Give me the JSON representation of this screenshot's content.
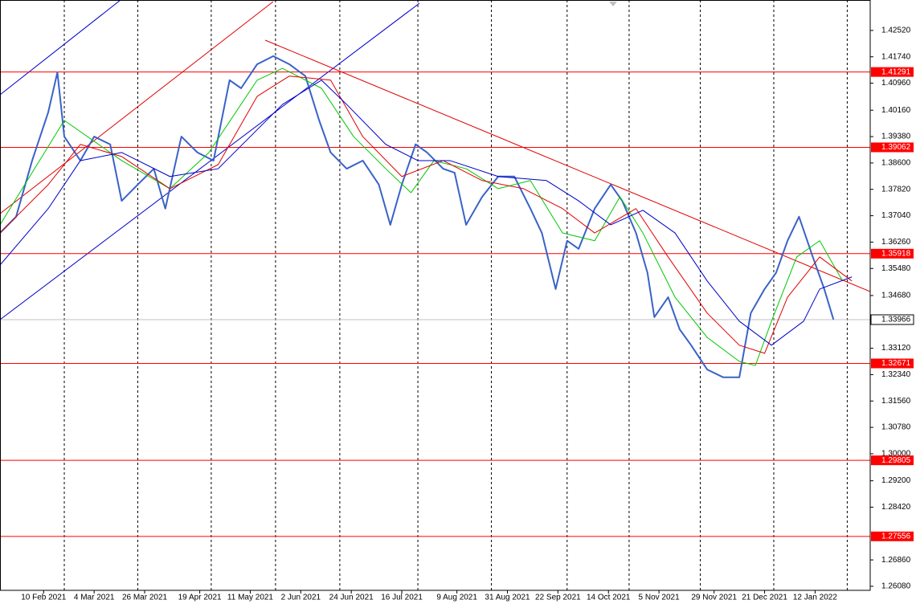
{
  "chart_data": {
    "type": "line",
    "xlim": [
      "2021-01-22",
      "2022-02-05"
    ],
    "ylim": [
      1.2596,
      1.4342
    ],
    "grid": true,
    "xgrid": [
      "2021-02-19",
      "2021-03-23",
      "2021-04-24",
      "2021-05-22",
      "2021-06-19",
      "2021-07-23",
      "2021-08-24",
      "2021-09-26",
      "2021-10-23",
      "2021-11-23",
      "2021-12-25",
      "2022-01-26"
    ],
    "xticks": [
      {
        "value": "2021-02-10",
        "label": "10 Feb 2021"
      },
      {
        "value": "2021-03-04",
        "label": "4 Mar 2021"
      },
      {
        "value": "2021-03-26",
        "label": "26 Mar 2021"
      },
      {
        "value": "2021-04-19",
        "label": "19 Apr 2021"
      },
      {
        "value": "2021-05-11",
        "label": "11 May 2021"
      },
      {
        "value": "2021-06-02",
        "label": "2 Jun 2021"
      },
      {
        "value": "2021-06-24",
        "label": "24 Jun 2021"
      },
      {
        "value": "2021-07-16",
        "label": "16 Jul 2021"
      },
      {
        "value": "2021-08-09",
        "label": "9 Aug 2021"
      },
      {
        "value": "2021-08-31",
        "label": "31 Aug 2021"
      },
      {
        "value": "2021-09-22",
        "label": "22 Sep 2021"
      },
      {
        "value": "2021-10-14",
        "label": "14 Oct 2021"
      },
      {
        "value": "2021-11-05",
        "label": "5 Nov 2021"
      },
      {
        "value": "2021-11-29",
        "label": "29 Nov 2021"
      },
      {
        "value": "2021-12-21",
        "label": "21 Dec 2021"
      },
      {
        "value": "2022-01-12",
        "label": "12 Jan 2022"
      }
    ],
    "yticks": [
      {
        "value": 1.4252,
        "label": "1.42520"
      },
      {
        "value": 1.4174,
        "label": "1.41740"
      },
      {
        "value": 1.4096,
        "label": "1.40960"
      },
      {
        "value": 1.4016,
        "label": "1.40160"
      },
      {
        "value": 1.3938,
        "label": "1.39380"
      },
      {
        "value": 1.386,
        "label": "1.38600"
      },
      {
        "value": 1.3782,
        "label": "1.37820"
      },
      {
        "value": 1.3704,
        "label": "1.37040"
      },
      {
        "value": 1.3626,
        "label": "1.36260"
      },
      {
        "value": 1.3548,
        "label": "1.35480"
      },
      {
        "value": 1.3468,
        "label": "1.34680"
      },
      {
        "value": 1.3312,
        "label": "1.33120"
      },
      {
        "value": 1.3234,
        "label": "1.32340"
      },
      {
        "value": 1.3156,
        "label": "1.31560"
      },
      {
        "value": 1.3078,
        "label": "1.30780"
      },
      {
        "value": 1.3,
        "label": "1.30000"
      },
      {
        "value": 1.292,
        "label": "1.29200"
      },
      {
        "value": 1.2842,
        "label": "1.28420"
      },
      {
        "value": 1.2686,
        "label": "1.26860"
      },
      {
        "value": 1.2608,
        "label": "1.26080"
      }
    ],
    "levels": [
      1.41291,
      1.39062,
      1.35918,
      1.32671,
      1.29805,
      1.27556
    ],
    "level_color": "#ff0000",
    "last_price": 1.33966,
    "series": [
      {
        "color": "#3a62c8",
        "width": 2,
        "x": [
          "2021-01-22",
          "2021-01-29",
          "2021-02-05",
          "2021-02-12",
          "2021-02-16",
          "2021-02-19",
          "2021-02-26",
          "2021-03-04",
          "2021-03-11",
          "2021-03-16",
          "2021-03-23",
          "2021-03-30",
          "2021-04-04",
          "2021-04-11",
          "2021-04-18",
          "2021-04-25",
          "2021-05-02",
          "2021-05-07",
          "2021-05-14",
          "2021-05-21",
          "2021-05-28",
          "2021-06-04",
          "2021-06-10",
          "2021-06-15",
          "2021-06-22",
          "2021-06-29",
          "2021-07-06",
          "2021-07-11",
          "2021-07-16",
          "2021-07-22",
          "2021-07-27",
          "2021-08-03",
          "2021-08-08",
          "2021-08-13",
          "2021-08-20",
          "2021-08-27",
          "2021-09-03",
          "2021-09-10",
          "2021-09-15",
          "2021-09-21",
          "2021-09-26",
          "2021-10-01",
          "2021-10-08",
          "2021-10-15",
          "2021-10-20",
          "2021-10-26",
          "2021-10-31",
          "2021-11-03",
          "2021-11-09",
          "2021-11-14",
          "2021-11-19",
          "2021-11-26",
          "2021-12-03",
          "2021-12-10",
          "2021-12-15",
          "2021-12-21",
          "2021-12-26",
          "2021-12-31",
          "2022-01-05",
          "2022-01-11",
          "2022-01-16",
          "2022-01-20"
        ],
        "values": [
          1.3653,
          1.3701,
          1.3867,
          1.401,
          1.4128,
          1.3938,
          1.3867,
          1.3938,
          1.3915,
          1.3748,
          1.3796,
          1.3843,
          1.3725,
          1.3938,
          1.3891,
          1.3867,
          1.4105,
          1.4081,
          1.4152,
          1.4176,
          1.4152,
          1.4117,
          1.3986,
          1.3891,
          1.3843,
          1.3867,
          1.3796,
          1.3677,
          1.3796,
          1.3915,
          1.3891,
          1.3843,
          1.3831,
          1.3677,
          1.376,
          1.382,
          1.382,
          1.3725,
          1.3653,
          1.3487,
          1.363,
          1.3606,
          1.3725,
          1.3796,
          1.3748,
          1.3653,
          1.3535,
          1.3404,
          1.3463,
          1.3368,
          1.3321,
          1.3249,
          1.3226,
          1.3226,
          1.3416,
          1.3487,
          1.3535,
          1.363,
          1.3701,
          1.3582,
          1.3487,
          1.3397
        ]
      },
      {
        "color": "#00c800",
        "width": 1,
        "x": [
          "2021-01-22",
          "2021-02-19",
          "2021-03-16",
          "2021-04-06",
          "2021-04-23",
          "2021-05-14",
          "2021-05-25",
          "2021-06-11",
          "2021-06-25",
          "2021-07-09",
          "2021-07-20",
          "2021-07-30",
          "2021-08-13",
          "2021-08-27",
          "2021-09-10",
          "2021-09-24",
          "2021-10-08",
          "2021-10-19",
          "2021-10-29",
          "2021-11-12",
          "2021-11-26",
          "2021-12-10",
          "2021-12-17",
          "2021-12-24",
          "2022-01-04",
          "2022-01-14",
          "2022-01-24"
        ],
        "values": [
          1.3677,
          1.3986,
          1.3867,
          1.3784,
          1.3891,
          1.4105,
          1.414,
          1.4081,
          1.3938,
          1.3843,
          1.3772,
          1.3867,
          1.3843,
          1.3784,
          1.3808,
          1.3653,
          1.363,
          1.376,
          1.3653,
          1.3463,
          1.3344,
          1.3273,
          1.3261,
          1.3392,
          1.3582,
          1.363,
          1.3511
        ]
      },
      {
        "color": "#e00000",
        "width": 1,
        "x": [
          "2021-01-22",
          "2021-02-12",
          "2021-02-26",
          "2021-03-16",
          "2021-04-06",
          "2021-04-27",
          "2021-05-14",
          "2021-05-28",
          "2021-06-15",
          "2021-06-29",
          "2021-07-16",
          "2021-08-03",
          "2021-08-20",
          "2021-09-07",
          "2021-09-24",
          "2021-10-08",
          "2021-10-26",
          "2021-11-09",
          "2021-11-26",
          "2021-12-10",
          "2021-12-21",
          "2021-12-31",
          "2022-01-14",
          "2022-01-28"
        ],
        "values": [
          1.3653,
          1.3796,
          1.3915,
          1.3879,
          1.3784,
          1.3855,
          1.4057,
          1.4117,
          1.4105,
          1.3938,
          1.382,
          1.3867,
          1.3808,
          1.3784,
          1.3725,
          1.3653,
          1.3725,
          1.3582,
          1.3416,
          1.3321,
          1.3297,
          1.3463,
          1.3582,
          1.3511
        ]
      },
      {
        "color": "#0000c8",
        "width": 1,
        "x": [
          "2021-01-22",
          "2021-02-12",
          "2021-02-26",
          "2021-03-16",
          "2021-04-06",
          "2021-04-27",
          "2021-05-11",
          "2021-05-25",
          "2021-06-11",
          "2021-06-22",
          "2021-07-09",
          "2021-07-23",
          "2021-08-06",
          "2021-08-27",
          "2021-09-17",
          "2021-10-01",
          "2021-10-15",
          "2021-10-29",
          "2021-11-12",
          "2021-11-26",
          "2021-12-10",
          "2021-12-24",
          "2022-01-07",
          "2022-01-14",
          "2022-01-28"
        ],
        "values": [
          1.3558,
          1.3725,
          1.3867,
          1.3891,
          1.382,
          1.3843,
          1.3938,
          1.4033,
          1.4105,
          1.4033,
          1.3915,
          1.3867,
          1.3867,
          1.382,
          1.3808,
          1.3748,
          1.3677,
          1.372,
          1.3653,
          1.3511,
          1.3392,
          1.3321,
          1.3392,
          1.3487,
          1.3523
        ]
      }
    ]
  }
}
